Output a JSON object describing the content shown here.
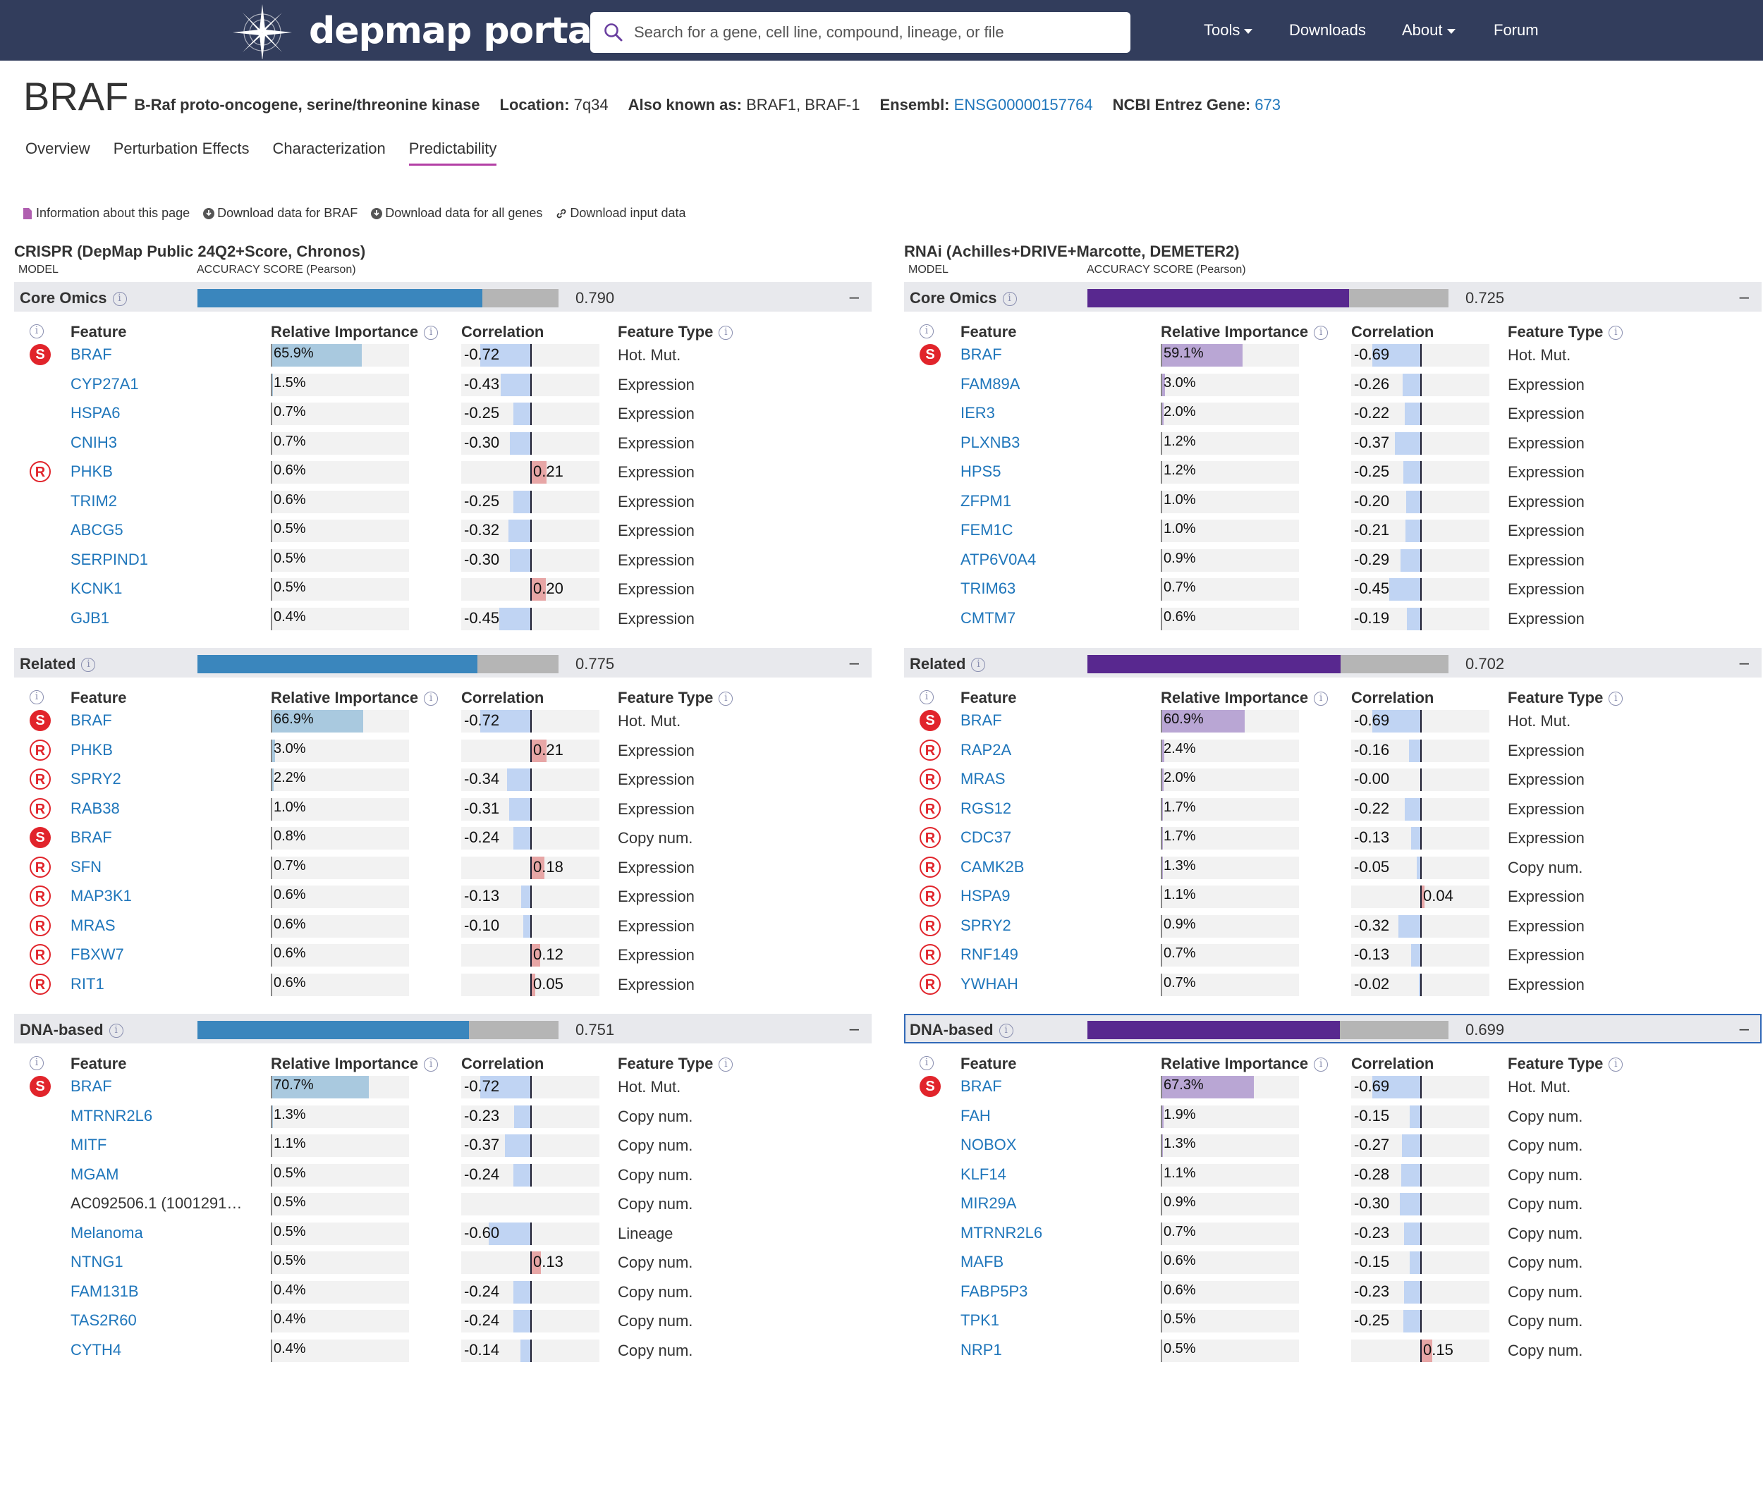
{
  "nav": {
    "logo_text": "depmap portal",
    "search_placeholder": "Search for a gene, cell line, compound, lineage, or file",
    "tools": "Tools",
    "downloads": "Downloads",
    "about": "About",
    "forum": "Forum"
  },
  "gene": {
    "symbol": "BRAF",
    "full_name": "B-Raf proto-oncogene, serine/threonine kinase",
    "location_label": "Location:",
    "location": "7q34",
    "aka_label": "Also known as:",
    "aka": "BRAF1, BRAF-1",
    "ensembl_label": "Ensembl:",
    "ensembl": "ENSG00000157764",
    "entrez_label": "NCBI Entrez Gene:",
    "entrez": "673"
  },
  "tabs": [
    "Overview",
    "Perturbation Effects",
    "Characterization",
    "Predictability"
  ],
  "active_tab": "Predictability",
  "links": {
    "info": "Information about this page",
    "download_gene": "Download data for BRAF",
    "download_all": "Download data for all genes",
    "download_input": "Download input data"
  },
  "table_headers": {
    "feature": "Feature",
    "importance": "Relative Importance",
    "correlation": "Correlation",
    "type": "Feature Type"
  },
  "colors": {
    "crispr": "#3a86bd",
    "crispr_light": "#a9c9df",
    "rnai": "#58288f",
    "rnai_light": "#b9a6d4"
  },
  "panels": [
    {
      "title": "CRISPR (DepMap Public 24Q2+Score, Chronos)",
      "model_label": "MODEL",
      "accuracy_label": "ACCURACY SCORE (Pearson)",
      "sections": [
        {
          "name": "Core Omics",
          "accuracy": 0.79,
          "accuracy_text": "0.790",
          "rows": [
            {
              "badge": "S",
              "feature": "BRAF",
              "imp": "65.9%",
              "corr": "-0.72",
              "type": "Hot. Mut."
            },
            {
              "badge": "",
              "feature": "CYP27A1",
              "imp": "1.5%",
              "corr": "-0.43",
              "type": "Expression"
            },
            {
              "badge": "",
              "feature": "HSPA6",
              "imp": "0.7%",
              "corr": "-0.25",
              "type": "Expression"
            },
            {
              "badge": "",
              "feature": "CNIH3",
              "imp": "0.7%",
              "corr": "-0.30",
              "type": "Expression"
            },
            {
              "badge": "R",
              "feature": "PHKB",
              "imp": "0.6%",
              "corr": "0.21",
              "type": "Expression"
            },
            {
              "badge": "",
              "feature": "TRIM2",
              "imp": "0.6%",
              "corr": "-0.25",
              "type": "Expression"
            },
            {
              "badge": "",
              "feature": "ABCG5",
              "imp": "0.5%",
              "corr": "-0.32",
              "type": "Expression"
            },
            {
              "badge": "",
              "feature": "SERPIND1",
              "imp": "0.5%",
              "corr": "-0.30",
              "type": "Expression"
            },
            {
              "badge": "",
              "feature": "KCNK1",
              "imp": "0.5%",
              "corr": "0.20",
              "type": "Expression"
            },
            {
              "badge": "",
              "feature": "GJB1",
              "imp": "0.4%",
              "corr": "-0.45",
              "type": "Expression"
            }
          ]
        },
        {
          "name": "Related",
          "accuracy": 0.775,
          "accuracy_text": "0.775",
          "rows": [
            {
              "badge": "S",
              "feature": "BRAF",
              "imp": "66.9%",
              "corr": "-0.72",
              "type": "Hot. Mut."
            },
            {
              "badge": "R",
              "feature": "PHKB",
              "imp": "3.0%",
              "corr": "0.21",
              "type": "Expression"
            },
            {
              "badge": "R",
              "feature": "SPRY2",
              "imp": "2.2%",
              "corr": "-0.34",
              "type": "Expression"
            },
            {
              "badge": "R",
              "feature": "RAB38",
              "imp": "1.0%",
              "corr": "-0.31",
              "type": "Expression"
            },
            {
              "badge": "S",
              "feature": "BRAF",
              "imp": "0.8%",
              "corr": "-0.24",
              "type": "Copy num."
            },
            {
              "badge": "R",
              "feature": "SFN",
              "imp": "0.7%",
              "corr": "0.18",
              "type": "Expression"
            },
            {
              "badge": "R",
              "feature": "MAP3K1",
              "imp": "0.6%",
              "corr": "-0.13",
              "type": "Expression"
            },
            {
              "badge": "R",
              "feature": "MRAS",
              "imp": "0.6%",
              "corr": "-0.10",
              "type": "Expression"
            },
            {
              "badge": "R",
              "feature": "FBXW7",
              "imp": "0.6%",
              "corr": "0.12",
              "type": "Expression"
            },
            {
              "badge": "R",
              "feature": "RIT1",
              "imp": "0.6%",
              "corr": "0.05",
              "type": "Expression"
            }
          ]
        },
        {
          "name": "DNA-based",
          "accuracy": 0.751,
          "accuracy_text": "0.751",
          "rows": [
            {
              "badge": "S",
              "feature": "BRAF",
              "imp": "70.7%",
              "corr": "-0.72",
              "type": "Hot. Mut."
            },
            {
              "badge": "",
              "feature": "MTRNR2L6",
              "imp": "1.3%",
              "corr": "-0.23",
              "type": "Copy num."
            },
            {
              "badge": "",
              "feature": "MITF",
              "imp": "1.1%",
              "corr": "-0.37",
              "type": "Copy num."
            },
            {
              "badge": "",
              "feature": "MGAM",
              "imp": "0.5%",
              "corr": "-0.24",
              "type": "Copy num."
            },
            {
              "badge": "",
              "feature": "AC092506.1 (1001291…",
              "imp": "0.5%",
              "corr": "",
              "type": "Copy num.",
              "plain": true
            },
            {
              "badge": "",
              "feature": "Melanoma",
              "imp": "0.5%",
              "corr": "-0.60",
              "type": "Lineage"
            },
            {
              "badge": "",
              "feature": "NTNG1",
              "imp": "0.5%",
              "corr": "0.13",
              "type": "Copy num."
            },
            {
              "badge": "",
              "feature": "FAM131B",
              "imp": "0.4%",
              "corr": "-0.24",
              "type": "Copy num."
            },
            {
              "badge": "",
              "feature": "TAS2R60",
              "imp": "0.4%",
              "corr": "-0.24",
              "type": "Copy num."
            },
            {
              "badge": "",
              "feature": "CYTH4",
              "imp": "0.4%",
              "corr": "-0.14",
              "type": "Copy num."
            }
          ]
        }
      ]
    },
    {
      "title": "RNAi (Achilles+DRIVE+Marcotte, DEMETER2)",
      "model_label": "MODEL",
      "accuracy_label": "ACCURACY SCORE (Pearson)",
      "sections": [
        {
          "name": "Core Omics",
          "accuracy": 0.725,
          "accuracy_text": "0.725",
          "rows": [
            {
              "badge": "S",
              "feature": "BRAF",
              "imp": "59.1%",
              "corr": "-0.69",
              "type": "Hot. Mut."
            },
            {
              "badge": "",
              "feature": "FAM89A",
              "imp": "3.0%",
              "corr": "-0.26",
              "type": "Expression"
            },
            {
              "badge": "",
              "feature": "IER3",
              "imp": "2.0%",
              "corr": "-0.22",
              "type": "Expression"
            },
            {
              "badge": "",
              "feature": "PLXNB3",
              "imp": "1.2%",
              "corr": "-0.37",
              "type": "Expression"
            },
            {
              "badge": "",
              "feature": "HPS5",
              "imp": "1.2%",
              "corr": "-0.25",
              "type": "Expression"
            },
            {
              "badge": "",
              "feature": "ZFPM1",
              "imp": "1.0%",
              "corr": "-0.20",
              "type": "Expression"
            },
            {
              "badge": "",
              "feature": "FEM1C",
              "imp": "1.0%",
              "corr": "-0.21",
              "type": "Expression"
            },
            {
              "badge": "",
              "feature": "ATP6V0A4",
              "imp": "0.9%",
              "corr": "-0.29",
              "type": "Expression"
            },
            {
              "badge": "",
              "feature": "TRIM63",
              "imp": "0.7%",
              "corr": "-0.45",
              "type": "Expression"
            },
            {
              "badge": "",
              "feature": "CMTM7",
              "imp": "0.6%",
              "corr": "-0.19",
              "type": "Expression"
            }
          ]
        },
        {
          "name": "Related",
          "accuracy": 0.702,
          "accuracy_text": "0.702",
          "rows": [
            {
              "badge": "S",
              "feature": "BRAF",
              "imp": "60.9%",
              "corr": "-0.69",
              "type": "Hot. Mut."
            },
            {
              "badge": "R",
              "feature": "RAP2A",
              "imp": "2.4%",
              "corr": "-0.16",
              "type": "Expression"
            },
            {
              "badge": "R",
              "feature": "MRAS",
              "imp": "2.0%",
              "corr": "-0.00",
              "type": "Expression"
            },
            {
              "badge": "R",
              "feature": "RGS12",
              "imp": "1.7%",
              "corr": "-0.22",
              "type": "Expression"
            },
            {
              "badge": "R",
              "feature": "CDC37",
              "imp": "1.7%",
              "corr": "-0.13",
              "type": "Expression"
            },
            {
              "badge": "R",
              "feature": "CAMK2B",
              "imp": "1.3%",
              "corr": "-0.05",
              "type": "Copy num."
            },
            {
              "badge": "R",
              "feature": "HSPA9",
              "imp": "1.1%",
              "corr": "0.04",
              "type": "Expression"
            },
            {
              "badge": "R",
              "feature": "SPRY2",
              "imp": "0.9%",
              "corr": "-0.32",
              "type": "Expression"
            },
            {
              "badge": "R",
              "feature": "RNF149",
              "imp": "0.7%",
              "corr": "-0.13",
              "type": "Expression"
            },
            {
              "badge": "R",
              "feature": "YWHAH",
              "imp": "0.7%",
              "corr": "-0.02",
              "type": "Expression"
            }
          ]
        },
        {
          "name": "DNA-based",
          "accuracy": 0.699,
          "accuracy_text": "0.699",
          "focused": true,
          "rows": [
            {
              "badge": "S",
              "feature": "BRAF",
              "imp": "67.3%",
              "corr": "-0.69",
              "type": "Hot. Mut."
            },
            {
              "badge": "",
              "feature": "FAH",
              "imp": "1.9%",
              "corr": "-0.15",
              "type": "Copy num."
            },
            {
              "badge": "",
              "feature": "NOBOX",
              "imp": "1.3%",
              "corr": "-0.27",
              "type": "Copy num."
            },
            {
              "badge": "",
              "feature": "KLF14",
              "imp": "1.1%",
              "corr": "-0.28",
              "type": "Copy num."
            },
            {
              "badge": "",
              "feature": "MIR29A",
              "imp": "0.9%",
              "corr": "-0.30",
              "type": "Copy num."
            },
            {
              "badge": "",
              "feature": "MTRNR2L6",
              "imp": "0.7%",
              "corr": "-0.23",
              "type": "Copy num."
            },
            {
              "badge": "",
              "feature": "MAFB",
              "imp": "0.6%",
              "corr": "-0.15",
              "type": "Copy num."
            },
            {
              "badge": "",
              "feature": "FABP5P3",
              "imp": "0.6%",
              "corr": "-0.23",
              "type": "Copy num."
            },
            {
              "badge": "",
              "feature": "TPK1",
              "imp": "0.5%",
              "corr": "-0.25",
              "type": "Copy num."
            },
            {
              "badge": "",
              "feature": "NRP1",
              "imp": "0.5%",
              "corr": "0.15",
              "type": "Copy num."
            }
          ]
        }
      ]
    }
  ]
}
